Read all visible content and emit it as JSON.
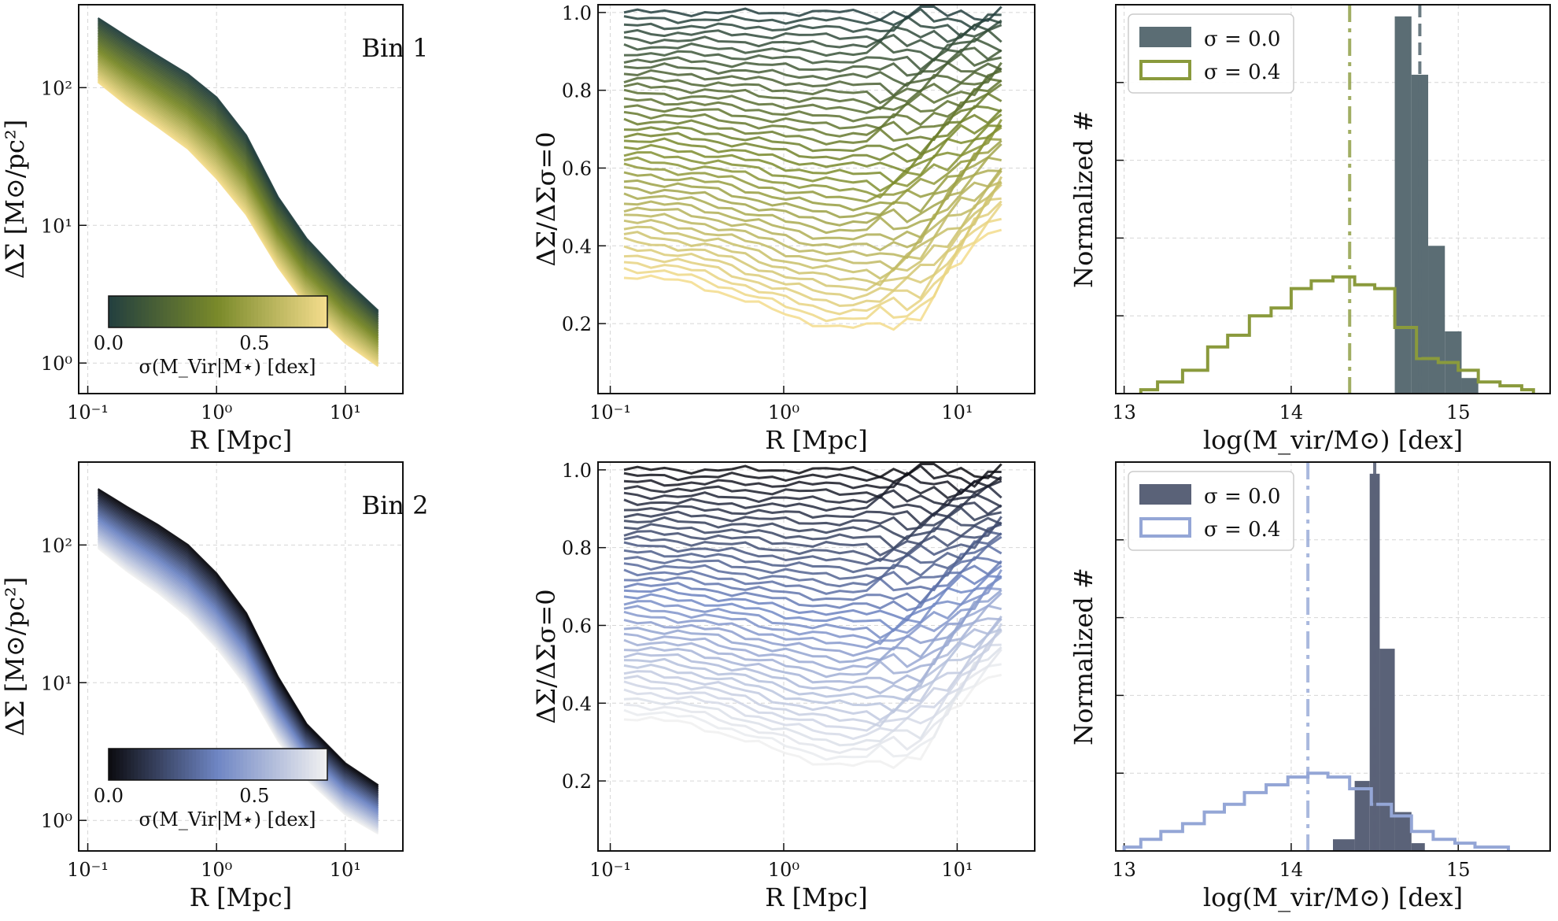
{
  "colors": {
    "bin1_dark": "#24403f",
    "bin1_mid": "#7a8a2a",
    "bin1_light": "#f3dc8c",
    "bin2_dark": "#0d0d12",
    "bin2_mid": "#6f86c4",
    "bin2_light": "#f0f0f0",
    "hist1_fill": "#5b6d74",
    "hist1_step": "#8a9a3c",
    "hist2_fill": "#5a6278",
    "hist2_step": "#94a6d6"
  },
  "chart_data": [
    {
      "type": "line",
      "panel": "top-left",
      "annotation": "Bin 1",
      "xlabel": "R [Mpc]",
      "ylabel": "ΔΣ [M⊙/pc²]",
      "xscale": "log",
      "yscale": "log",
      "xlim": [
        0.085,
        28
      ],
      "ylim": [
        0.6,
        400
      ],
      "xticklabels": [
        "10⁻¹",
        "10⁰",
        "10¹"
      ],
      "yticklabels": [
        "10⁰",
        "10¹",
        "10²"
      ],
      "x": [
        0.12,
        0.2,
        0.35,
        0.6,
        1.0,
        1.7,
        3.0,
        5.0,
        10.0,
        18.0
      ],
      "series_top": [
        320,
        235,
        170,
        125,
        85,
        45,
        16,
        8.0,
        4.0,
        2.4
      ],
      "series_bottom": [
        110,
        75,
        52,
        36,
        22,
        12,
        5.0,
        2.6,
        1.4,
        0.95
      ],
      "n_series": 40,
      "colorbar": {
        "label": "σ(M_Vir|M⋆) [dex]",
        "ticks": [
          "0.0",
          "0.5"
        ],
        "range": [
          0,
          0.75
        ]
      }
    },
    {
      "type": "line",
      "panel": "top-middle",
      "xlabel": "R [Mpc]",
      "ylabel": "ΔΣ/ΔΣσ=0",
      "xscale": "log",
      "xlim": [
        0.085,
        28
      ],
      "ylim": [
        0.02,
        1.02
      ],
      "xticklabels": [
        "10⁻¹",
        "10⁰",
        "10¹"
      ],
      "yticklabels": [
        "0.2",
        "0.4",
        "0.6",
        "0.8",
        "1.0"
      ],
      "ratio_start": [
        1.0,
        0.33
      ],
      "ratio_min": [
        1.0,
        0.19
      ],
      "n_series": 40
    },
    {
      "type": "histogram",
      "panel": "top-right",
      "xlabel": "log(M_vir/M⊙) [dex]",
      "ylabel": "Normalized #",
      "xlim": [
        12.95,
        15.55
      ],
      "xticklabels": [
        "13",
        "14",
        "15"
      ],
      "legend": [
        "σ = 0.0",
        "σ = 0.4"
      ],
      "legend_position": "top-left",
      "sigma0_bins": [
        [
          14.62,
          14.72,
          0.97
        ],
        [
          14.72,
          14.82,
          0.82
        ],
        [
          14.82,
          14.92,
          0.38
        ],
        [
          14.92,
          15.02,
          0.16
        ],
        [
          15.02,
          15.12,
          0.04
        ]
      ],
      "sigma04_bins": [
        [
          13.1,
          13.2,
          0.01
        ],
        [
          13.2,
          13.35,
          0.03
        ],
        [
          13.35,
          13.5,
          0.06
        ],
        [
          13.5,
          13.62,
          0.12
        ],
        [
          13.62,
          13.75,
          0.15
        ],
        [
          13.75,
          13.88,
          0.2
        ],
        [
          13.88,
          14.0,
          0.22
        ],
        [
          14.0,
          14.12,
          0.27
        ],
        [
          14.12,
          14.25,
          0.29
        ],
        [
          14.25,
          14.38,
          0.3
        ],
        [
          14.38,
          14.5,
          0.28
        ],
        [
          14.5,
          14.62,
          0.27
        ],
        [
          14.62,
          14.75,
          0.17
        ],
        [
          14.75,
          14.88,
          0.09
        ],
        [
          14.88,
          15.0,
          0.08
        ],
        [
          15.0,
          15.12,
          0.06
        ],
        [
          15.12,
          15.25,
          0.03
        ],
        [
          15.25,
          15.38,
          0.02
        ],
        [
          15.38,
          15.45,
          0.01
        ]
      ],
      "vline_dashdot": 14.35,
      "vline_dashed": 14.77,
      "ylim": [
        0,
        1.0
      ]
    },
    {
      "type": "line",
      "panel": "bottom-left",
      "annotation": "Bin 2",
      "xlabel": "R [Mpc]",
      "ylabel": "ΔΣ [M⊙/pc²]",
      "xscale": "log",
      "yscale": "log",
      "xlim": [
        0.085,
        28
      ],
      "ylim": [
        0.6,
        400
      ],
      "xticklabels": [
        "10⁻¹",
        "10⁰",
        "10¹"
      ],
      "yticklabels": [
        "10⁰",
        "10¹",
        "10²"
      ],
      "x": [
        0.12,
        0.2,
        0.35,
        0.6,
        1.0,
        1.7,
        3.0,
        5.0,
        10.0,
        18.0
      ],
      "series_top": [
        255,
        190,
        140,
        100,
        62,
        32,
        11,
        5.0,
        2.6,
        1.8
      ],
      "series_bottom": [
        95,
        65,
        45,
        30,
        18,
        9.5,
        3.8,
        2.0,
        1.1,
        0.8
      ],
      "n_series": 40,
      "colorbar": {
        "label": "σ(M_Vir|M⋆) [dex]",
        "ticks": [
          "0.0",
          "0.5"
        ],
        "range": [
          0,
          0.75
        ]
      }
    },
    {
      "type": "line",
      "panel": "bottom-middle",
      "xlabel": "R [Mpc]",
      "ylabel": "ΔΣ/ΔΣσ=0",
      "xscale": "log",
      "xlim": [
        0.085,
        28
      ],
      "ylim": [
        0.02,
        1.02
      ],
      "xticklabels": [
        "10⁻¹",
        "10⁰",
        "10¹"
      ],
      "yticklabels": [
        "0.2",
        "0.4",
        "0.6",
        "0.8",
        "1.0"
      ],
      "ratio_start": [
        1.0,
        0.37
      ],
      "ratio_min": [
        1.0,
        0.24
      ],
      "n_series": 40
    },
    {
      "type": "histogram",
      "panel": "bottom-right",
      "xlabel": "log(M_vir/M⊙) [dex]",
      "ylabel": "Normalized #",
      "xlim": [
        12.95,
        15.55
      ],
      "xticklabels": [
        "13",
        "14",
        "15"
      ],
      "legend": [
        "σ = 0.0",
        "σ = 0.4"
      ],
      "legend_position": "top-left",
      "sigma0_bins": [
        [
          14.25,
          14.38,
          0.03
        ],
        [
          14.38,
          14.47,
          0.18
        ],
        [
          14.47,
          14.53,
          0.97
        ],
        [
          14.53,
          14.62,
          0.52
        ],
        [
          14.62,
          14.72,
          0.1
        ],
        [
          14.72,
          14.8,
          0.02
        ]
      ],
      "sigma04_bins": [
        [
          13.0,
          13.1,
          0.01
        ],
        [
          13.1,
          13.22,
          0.03
        ],
        [
          13.22,
          13.35,
          0.05
        ],
        [
          13.35,
          13.48,
          0.07
        ],
        [
          13.48,
          13.6,
          0.1
        ],
        [
          13.6,
          13.72,
          0.12
        ],
        [
          13.72,
          13.85,
          0.15
        ],
        [
          13.85,
          13.98,
          0.17
        ],
        [
          13.98,
          14.1,
          0.19
        ],
        [
          14.1,
          14.22,
          0.2
        ],
        [
          14.22,
          14.35,
          0.19
        ],
        [
          14.35,
          14.48,
          0.16
        ],
        [
          14.48,
          14.6,
          0.12
        ],
        [
          14.6,
          14.72,
          0.09
        ],
        [
          14.72,
          14.85,
          0.05
        ],
        [
          14.85,
          14.98,
          0.03
        ],
        [
          14.98,
          15.1,
          0.02
        ],
        [
          15.1,
          15.3,
          0.01
        ]
      ],
      "vline_dashdot": 14.1,
      "vline_dashed": 14.5,
      "ylim": [
        0,
        1.0
      ]
    }
  ]
}
